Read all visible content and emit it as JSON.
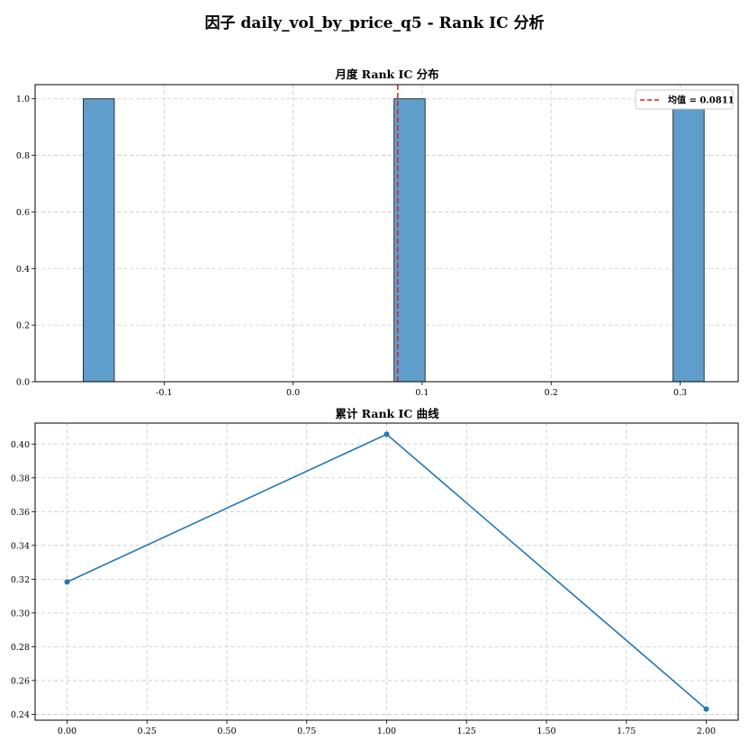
{
  "figure": {
    "suptitle": "因子 daily_vol_by_price_q5 - Rank IC 分析"
  },
  "chart_data": [
    {
      "type": "bar",
      "title": "月度 Rank IC 分布",
      "xlabel": "",
      "ylabel": "",
      "xlim": [
        -0.2,
        0.345
      ],
      "ylim": [
        0,
        1.05
      ],
      "xticks": [
        -0.1,
        0.0,
        0.1,
        0.2,
        0.3
      ],
      "xtick_labels": [
        "-0.1",
        "0.0",
        "0.1",
        "0.2",
        "0.3"
      ],
      "yticks": [
        0.0,
        0.2,
        0.4,
        0.6,
        0.8,
        1.0
      ],
      "ytick_labels": [
        "0.0",
        "0.2",
        "0.4",
        "0.6",
        "0.8",
        "1.0"
      ],
      "bins": [
        {
          "start": -0.1627,
          "end": -0.1386,
          "count": 1
        },
        {
          "start": 0.0782,
          "end": 0.1023,
          "count": 1
        },
        {
          "start": 0.2945,
          "end": 0.3186,
          "count": 1
        }
      ],
      "bar_color": "#5f9ecb",
      "bar_edge_color": "#222222",
      "mean_line": {
        "value": 0.0811,
        "label": "均值 = 0.0811",
        "color": "#e41a1c"
      },
      "legend_position": "top-right",
      "grid": true
    },
    {
      "type": "line",
      "title": "累计 Rank IC 曲线",
      "xlabel": "",
      "ylabel": "",
      "x": [
        0,
        1,
        2
      ],
      "y": [
        0.3183,
        0.4058,
        0.2431
      ],
      "xlim": [
        -0.1,
        2.1
      ],
      "ylim": [
        0.2365,
        0.4124
      ],
      "xticks": [
        0.0,
        0.25,
        0.5,
        0.75,
        1.0,
        1.25,
        1.5,
        1.75,
        2.0
      ],
      "xtick_labels": [
        "0.00",
        "0.25",
        "0.50",
        "0.75",
        "1.00",
        "1.25",
        "1.50",
        "1.75",
        "2.00"
      ],
      "yticks": [
        0.24,
        0.26,
        0.28,
        0.3,
        0.32,
        0.34,
        0.36,
        0.38,
        0.4
      ],
      "ytick_labels": [
        "0.24",
        "0.26",
        "0.28",
        "0.30",
        "0.32",
        "0.34",
        "0.36",
        "0.38",
        "0.40"
      ],
      "line_color": "#1f77b4",
      "marker": "circle",
      "grid": true
    }
  ]
}
